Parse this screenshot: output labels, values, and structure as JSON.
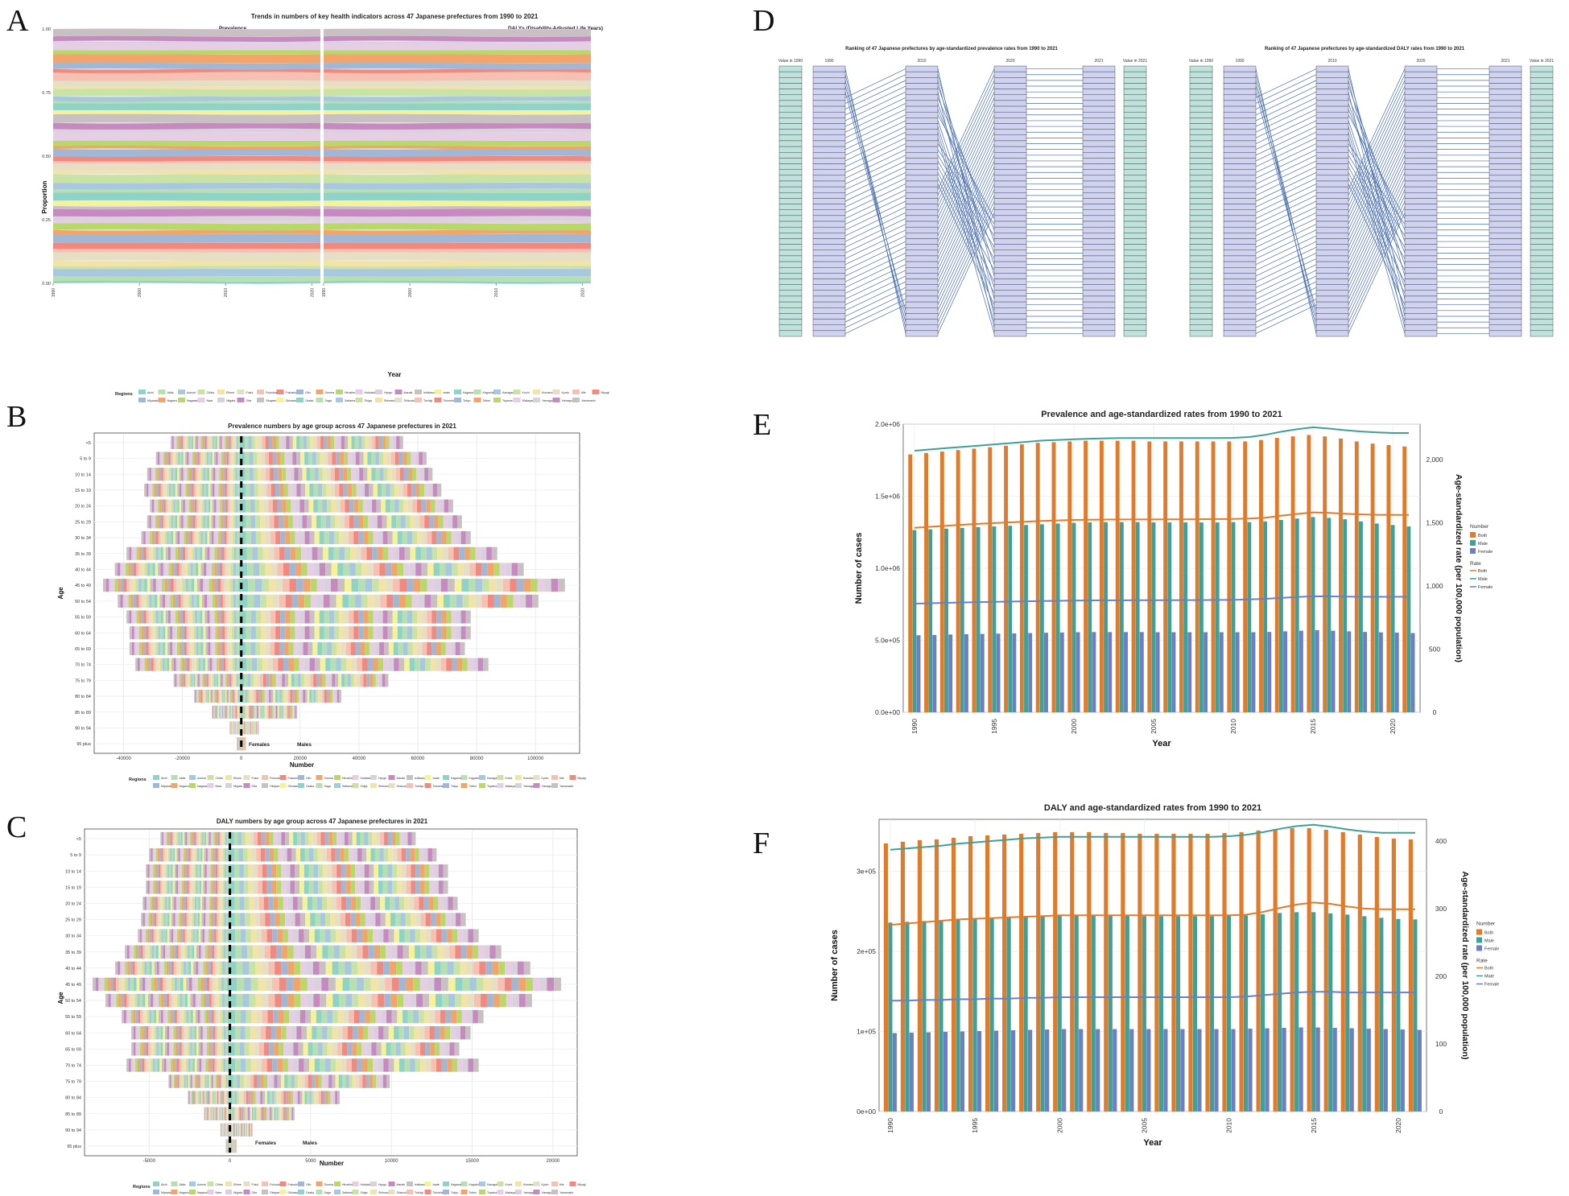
{
  "panels": {
    "A": {
      "label": "A",
      "title": "Trends in numbers of key health indicators across 47 Japanese prefectures from 1990 to 2021",
      "facets": [
        "Prevalence",
        "DALYs (Disability-Adjusted Life Years)"
      ],
      "xlabel": "Year",
      "ylabel": "Proportion",
      "legend_title": "Regions"
    },
    "B": {
      "label": "B",
      "title": "Prevalence numbers by age group across 47 Japanese prefectures in 2021",
      "xlabel": "Number",
      "ylabel": "Age",
      "females": "Females",
      "males": "Males",
      "legend_title": "Regions"
    },
    "C": {
      "label": "C",
      "title": "DALY numbers by age group across 47 Japanese prefectures in 2021",
      "xlabel": "Number",
      "ylabel": "Age",
      "females": "Females",
      "males": "Males",
      "legend_title": "Regions"
    },
    "D": {
      "label": "D",
      "left_title": "Ranking of 47 Japanese prefectures by age-standardized prevalence rates from 1990 to 2021",
      "right_title": "Ranking of 47 Japanese prefectures by age-standardized DALY rates from 1990 to 2021",
      "col_value1990": "Value in 1990",
      "col_1990": "1990",
      "col_2010": "2010",
      "col_2020": "2020",
      "col_2021": "2021",
      "col_value2021": "Value in 2021"
    },
    "E": {
      "label": "E"
    },
    "F": {
      "label": "F"
    }
  },
  "legend_colors": [
    "#8fd3c8",
    "#b7dfb0",
    "#a8c7e0",
    "#c9e3a6",
    "#f2e4a8",
    "#e4dfc5",
    "#f6c0b3",
    "#f08a7e",
    "#a0b8d6",
    "#f2a46a",
    "#b8d86a",
    "#e6cfe6",
    "#d9d1dc",
    "#c68ac0",
    "#c9c0c4",
    "#f5f29a"
  ],
  "prefectures": [
    "Aichi",
    "Akita",
    "Aomori",
    "Chiba",
    "Ehime",
    "Fukui",
    "Fukuoka",
    "Fukushima",
    "Gifu",
    "Gunma",
    "Hiroshima",
    "Hokkaido",
    "Hyogo",
    "Ibaraki",
    "Ishikawa",
    "Iwate",
    "Kagawa",
    "Kagoshima",
    "Kanagawa",
    "Kochi",
    "Kumamoto",
    "Kyoto",
    "Mie",
    "Miyagi",
    "Miyazaki",
    "Nagano",
    "Nagasaki",
    "Nara",
    "Niigata",
    "Oita",
    "Okayama",
    "Okinawa",
    "Osaka",
    "Saga",
    "Saitama",
    "Shiga",
    "Shimane",
    "Shizuoka",
    "Tochigi",
    "Tokushima",
    "Tokyo",
    "Tottori",
    "Toyama",
    "Wakayama",
    "Yamagata",
    "Yamaguchi",
    "Yamanashi"
  ],
  "pyramid_ages": [
    "<5",
    "5 to 9",
    "10 to 14",
    "15 to 19",
    "20 to 24",
    "25 to 29",
    "30 to 34",
    "35 to 39",
    "40 to 44",
    "45 to 49",
    "50 to 54",
    "55 to 59",
    "60 to 64",
    "65 to 69",
    "70 to 74",
    "75 to 79",
    "80 to 84",
    "85 to 89",
    "90 to 94",
    "95 plus"
  ],
  "chart_data": [
    {
      "panel": "A",
      "type": "area",
      "title": "Trends in numbers of key health indicators across 47 Japanese prefectures from 1990 to 2021",
      "facets": [
        "Prevalence",
        "DALYs (Disability-Adjusted Life Years)"
      ],
      "x": [
        1990,
        2000,
        2010,
        2020
      ],
      "xlabel": "Year",
      "ylabel": "Proportion",
      "yticks": [
        "0.00",
        "0.25",
        "0.50",
        "0.75",
        "1.00"
      ],
      "ylim": [
        0,
        1
      ]
    },
    {
      "panel": "B",
      "type": "bar",
      "title": "Prevalence numbers by age group across 47 Japanese prefectures in 2021",
      "categories": [
        "<5",
        "5 to 9",
        "10 to 14",
        "15 to 19",
        "20 to 24",
        "25 to 29",
        "30 to 34",
        "35 to 39",
        "40 to 44",
        "45 to 49",
        "50 to 54",
        "55 to 59",
        "60 to 64",
        "65 to 69",
        "70 to 74",
        "75 to 79",
        "80 to 84",
        "85 to 89",
        "90 to 94",
        "95 plus"
      ],
      "females": [
        24000,
        29000,
        32000,
        33000,
        31000,
        32000,
        34000,
        39000,
        43000,
        47000,
        42000,
        39000,
        38000,
        38000,
        36000,
        23000,
        16000,
        10000,
        4000,
        1500
      ],
      "males": [
        55000,
        63000,
        65000,
        68000,
        72000,
        75000,
        78000,
        87000,
        96000,
        110000,
        101000,
        78000,
        78000,
        76000,
        84000,
        50000,
        34000,
        19000,
        6000,
        1500
      ],
      "xticks": [
        "-40000",
        "-20000",
        "0",
        "20000",
        "40000",
        "60000",
        "80000",
        "100000"
      ],
      "xlim": [
        -50000,
        115000
      ],
      "xlabel": "Number",
      "ylabel": "Age"
    },
    {
      "panel": "C",
      "type": "bar",
      "title": "DALY numbers by age group across 47 Japanese prefectures in 2021",
      "categories": [
        "<5",
        "5 to 9",
        "10 to 14",
        "15 to 19",
        "20 to 24",
        "25 to 29",
        "30 to 34",
        "35 to 39",
        "40 to 44",
        "45 to 49",
        "50 to 54",
        "55 to 59",
        "60 to 64",
        "65 to 69",
        "70 to 74",
        "75 to 79",
        "80 to 84",
        "85 to 89",
        "90 to 94",
        "95 plus"
      ],
      "females": [
        4300,
        5000,
        5200,
        5200,
        5400,
        5500,
        5700,
        6500,
        7100,
        8500,
        7700,
        6700,
        6100,
        6100,
        6400,
        3800,
        2600,
        1600,
        600,
        250
      ],
      "males": [
        11500,
        12800,
        13500,
        13500,
        14100,
        14600,
        15400,
        16800,
        18600,
        20500,
        18700,
        15700,
        14900,
        14200,
        15400,
        9900,
        6800,
        4000,
        1400,
        400
      ],
      "xticks": [
        "-5000",
        "0",
        "5000",
        "10000",
        "15000",
        "20000"
      ],
      "xlim": [
        -9000,
        21500
      ],
      "xlabel": "Number",
      "ylabel": "Age"
    },
    {
      "panel": "E",
      "type": "bar",
      "title": "Prevalence and age-standardized rates from 1990 to 2021",
      "x": [
        1990,
        1991,
        1992,
        1993,
        1994,
        1995,
        1996,
        1997,
        1998,
        1999,
        2000,
        2001,
        2002,
        2003,
        2004,
        2005,
        2006,
        2007,
        2008,
        2009,
        2010,
        2011,
        2012,
        2013,
        2014,
        2015,
        2016,
        2017,
        2018,
        2019,
        2020,
        2021
      ],
      "series": [
        {
          "name": "Both",
          "kind": "Number",
          "color": "#e07b2c",
          "values": [
            1790000,
            1800000,
            1810000,
            1820000,
            1830000,
            1840000,
            1850000,
            1860000,
            1870000,
            1875000,
            1880000,
            1885000,
            1885000,
            1885000,
            1885000,
            1880000,
            1880000,
            1880000,
            1880000,
            1880000,
            1880000,
            1880000,
            1890000,
            1905000,
            1915000,
            1925000,
            1915000,
            1900000,
            1880000,
            1865000,
            1855000,
            1845000
          ]
        },
        {
          "name": "Male",
          "kind": "Number",
          "color": "#3fa196",
          "values": [
            1265000,
            1270000,
            1275000,
            1280000,
            1285000,
            1290000,
            1295000,
            1300000,
            1305000,
            1310000,
            1315000,
            1318000,
            1320000,
            1320000,
            1320000,
            1318000,
            1318000,
            1318000,
            1318000,
            1318000,
            1320000,
            1320000,
            1325000,
            1335000,
            1345000,
            1355000,
            1350000,
            1340000,
            1325000,
            1310000,
            1300000,
            1290000
          ]
        },
        {
          "name": "Female",
          "kind": "Number",
          "color": "#6b7fc2",
          "values": [
            535000,
            537000,
            540000,
            542000,
            544000,
            546000,
            548000,
            550000,
            552000,
            554000,
            556000,
            557000,
            557000,
            557000,
            557000,
            556000,
            556000,
            556000,
            556000,
            556000,
            556000,
            556000,
            558000,
            562000,
            566000,
            570000,
            566000,
            562000,
            558000,
            555000,
            553000,
            550000
          ]
        },
        {
          "name": "Both",
          "kind": "Rate",
          "color": "#e07b2c",
          "values": [
            1460,
            1468,
            1476,
            1484,
            1491,
            1497,
            1503,
            1509,
            1514,
            1518,
            1522,
            1524,
            1525,
            1526,
            1526,
            1526,
            1527,
            1527,
            1528,
            1529,
            1530,
            1533,
            1540,
            1555,
            1570,
            1582,
            1578,
            1572,
            1566,
            1563,
            1562,
            1562
          ]
        },
        {
          "name": "Male",
          "kind": "Rate",
          "color": "#3fa196",
          "values": [
            2070,
            2080,
            2090,
            2100,
            2110,
            2120,
            2130,
            2140,
            2150,
            2155,
            2160,
            2165,
            2168,
            2170,
            2170,
            2170,
            2170,
            2170,
            2170,
            2170,
            2172,
            2178,
            2195,
            2220,
            2240,
            2255,
            2245,
            2232,
            2222,
            2215,
            2210,
            2210
          ]
        },
        {
          "name": "Female",
          "kind": "Rate",
          "color": "#6b7fc2",
          "values": [
            860,
            863,
            866,
            869,
            872,
            874,
            876,
            878,
            880,
            882,
            884,
            885,
            886,
            886,
            887,
            887,
            887,
            888,
            888,
            889,
            890,
            893,
            898,
            905,
            912,
            918,
            917,
            915,
            914,
            914,
            914,
            914
          ]
        }
      ],
      "xticks": [
        "1990",
        "1995",
        "2000",
        "2005",
        "2010",
        "2015",
        "2020"
      ],
      "yticks_left": [
        "0.0e+00",
        "5.0e+05",
        "1.0e+06",
        "1.5e+06",
        "2.0e+06"
      ],
      "yticks_right": [
        "0",
        "500",
        "1,000",
        "1,500",
        "2,000"
      ],
      "ylim_left": [
        0,
        2000000
      ],
      "ylim_right": [
        0,
        2280
      ],
      "xlabel": "Year",
      "ylabel_left": "Number of cases",
      "ylabel_right": "Age-standardized rate (per 100,000 population)",
      "legend_number_title": "Number",
      "legend_rate_title": "Rate"
    },
    {
      "panel": "F",
      "type": "bar",
      "title": "DALY and age-standardized rates from 1990 to 2021",
      "x": [
        1990,
        1991,
        1992,
        1993,
        1994,
        1995,
        1996,
        1997,
        1998,
        1999,
        2000,
        2001,
        2002,
        2003,
        2004,
        2005,
        2006,
        2007,
        2008,
        2009,
        2010,
        2011,
        2012,
        2013,
        2014,
        2015,
        2016,
        2017,
        2018,
        2019,
        2020,
        2021
      ],
      "series": [
        {
          "name": "Both",
          "kind": "Number",
          "color": "#e07b2c",
          "values": [
            335000,
            337000,
            339000,
            340000,
            342000,
            344000,
            345000,
            346000,
            347000,
            348000,
            349000,
            349000,
            349000,
            348000,
            348000,
            347000,
            347000,
            347000,
            347000,
            347000,
            348000,
            349000,
            351000,
            353000,
            354000,
            354000,
            352000,
            349000,
            346000,
            343000,
            341000,
            340000
          ]
        },
        {
          "name": "Male",
          "kind": "Number",
          "color": "#3fa196",
          "values": [
            236000,
            237000,
            238000,
            239000,
            240000,
            241000,
            242000,
            243000,
            244000,
            244500,
            245000,
            245000,
            245000,
            245000,
            244500,
            244000,
            244000,
            244000,
            244000,
            244000,
            244500,
            245000,
            246500,
            248000,
            249000,
            249000,
            247500,
            246000,
            244000,
            242000,
            240500,
            240000
          ]
        },
        {
          "name": "Female",
          "kind": "Number",
          "color": "#6b7fc2",
          "values": [
            98000,
            98500,
            99000,
            99500,
            100000,
            100500,
            101000,
            101500,
            102000,
            102500,
            103000,
            103000,
            103000,
            103000,
            103000,
            103000,
            103000,
            103000,
            103000,
            103000,
            103000,
            103500,
            104000,
            104500,
            105000,
            105000,
            104500,
            104000,
            103500,
            103000,
            102500,
            102000
          ]
        },
        {
          "name": "Both",
          "kind": "Rate",
          "color": "#e07b2c",
          "values": [
            276,
            278,
            280,
            282,
            284,
            285,
            286,
            287,
            288,
            289,
            290,
            290,
            290,
            290,
            290,
            290,
            290,
            290,
            290,
            290,
            290,
            291,
            295,
            301,
            306,
            309,
            307,
            303,
            300,
            299,
            299,
            299
          ]
        },
        {
          "name": "Male",
          "kind": "Rate",
          "color": "#3fa196",
          "values": [
            387,
            389,
            391,
            393,
            396,
            398,
            400,
            402,
            404,
            405,
            406,
            406,
            406,
            406,
            406,
            406,
            406,
            406,
            406,
            406,
            407,
            409,
            413,
            418,
            422,
            424,
            421,
            417,
            414,
            412,
            412,
            412
          ]
        },
        {
          "name": "Female",
          "kind": "Rate",
          "color": "#6b7fc2",
          "values": [
            164,
            164,
            165,
            165,
            166,
            166,
            167,
            167,
            168,
            168,
            169,
            169,
            169,
            169,
            169,
            169,
            169,
            169,
            169,
            169,
            169,
            170,
            172,
            174,
            176,
            177,
            177,
            176,
            176,
            176,
            176,
            176
          ]
        }
      ],
      "xticks": [
        "1990",
        "1995",
        "2000",
        "2005",
        "2010",
        "2015",
        "2020"
      ],
      "yticks_left": [
        "0e+00",
        "1e+05",
        "2e+05",
        "3e+05"
      ],
      "yticks_right": [
        "0",
        "100",
        "200",
        "300",
        "400"
      ],
      "ylim_left": [
        0,
        365000
      ],
      "ylim_right": [
        0,
        432
      ],
      "xlabel": "Year",
      "ylabel_left": "Number of cases",
      "ylabel_right": "Age-standardized rate (per 100,000 population)",
      "legend_number_title": "Number",
      "legend_rate_title": "Rate"
    }
  ]
}
